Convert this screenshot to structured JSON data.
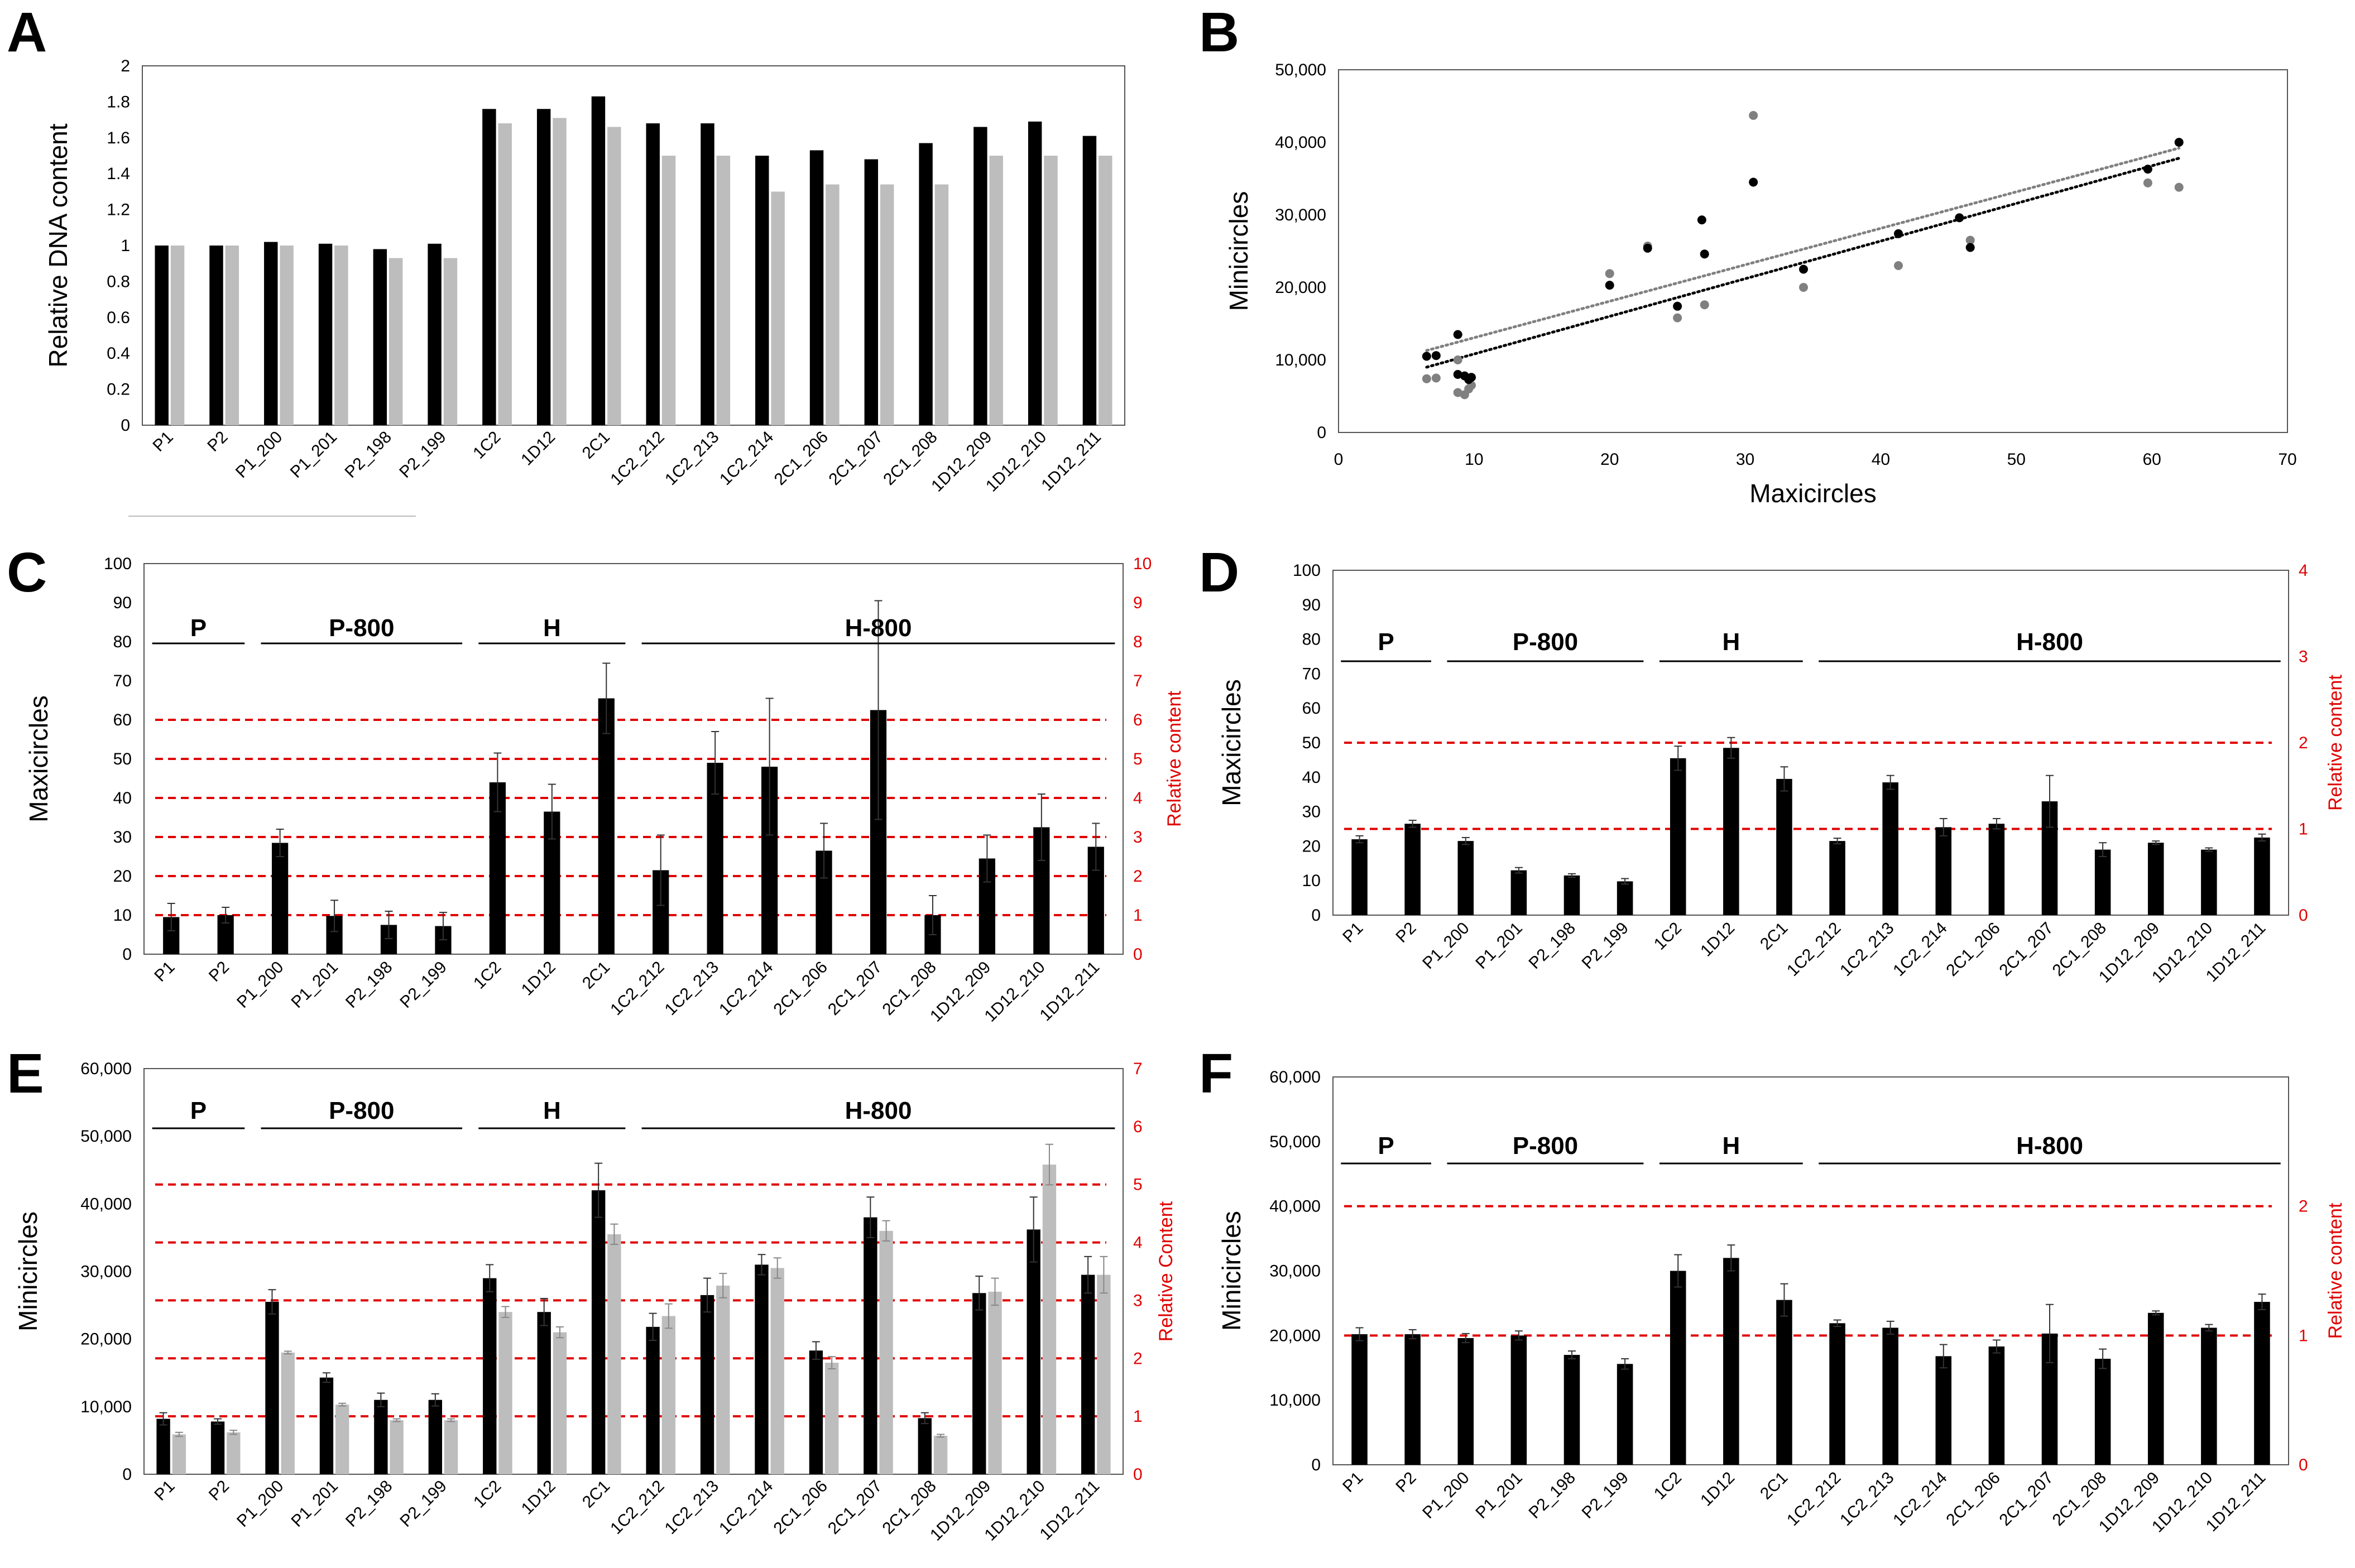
{
  "figure": {
    "panel_letters": [
      "A",
      "B",
      "C",
      "D",
      "E",
      "F"
    ]
  },
  "colors": {
    "black_bar": "#000000",
    "grey_bar": "#bdbdbd",
    "grey_point": "#808080",
    "reference_line": "#e00000",
    "axis": "#000000"
  },
  "chart_data": [
    {
      "panel": "A",
      "type": "bar",
      "ylabel": "Relative DNA content",
      "xlabel": "",
      "ylim": [
        0,
        2
      ],
      "yticks": [
        "0",
        "0.2",
        "0.4",
        "0.6",
        "0.8",
        "1",
        "1.2",
        "1.4",
        "1.6",
        "1.8",
        "2"
      ],
      "categories": [
        "P1",
        "P2",
        "P1_200",
        "P1_201",
        "P2_198",
        "P2_199",
        "1C2",
        "1D12",
        "2C1",
        "1C2_212",
        "1C2_213",
        "1C2_214",
        "2C1_206",
        "2C1_207",
        "2C1_208",
        "1D12_209",
        "1D12_210",
        "1D12_211"
      ],
      "series": [
        {
          "name": "Maxicircles",
          "values": [
            1.0,
            1.0,
            1.02,
            1.01,
            0.98,
            1.01,
            1.76,
            1.76,
            1.83,
            1.68,
            1.68,
            1.5,
            1.53,
            1.48,
            1.57,
            1.66,
            1.69,
            1.61
          ]
        },
        {
          "name": "Minicircles",
          "values": [
            1.0,
            1.0,
            1.0,
            1.0,
            0.93,
            0.93,
            1.68,
            1.71,
            1.66,
            1.5,
            1.5,
            1.3,
            1.34,
            1.34,
            1.34,
            1.5,
            1.5,
            1.5
          ]
        }
      ]
    },
    {
      "panel": "B",
      "type": "scatter",
      "xlabel": "Maxicircles",
      "ylabel": "Minicircles",
      "xlim": [
        0,
        70
      ],
      "ylim": [
        0,
        50000
      ],
      "xticks": [
        "0",
        "10",
        "20",
        "30",
        "40",
        "50",
        "60",
        "70"
      ],
      "yticks": [
        "0",
        "10,000",
        "20,000",
        "30,000",
        "40,000",
        "50,000"
      ],
      "series": [
        {
          "name": "black",
          "x": [
            6.5,
            7.2,
            8.8,
            8.8,
            9.3,
            9.6,
            9.8,
            20.0,
            22.8,
            25.0,
            26.8,
            27.0,
            30.6,
            34.3,
            41.3,
            45.8,
            46.6,
            59.7,
            62.0
          ],
          "y": [
            10500,
            10600,
            13500,
            8000,
            7800,
            7300,
            7600,
            20300,
            25400,
            17400,
            29300,
            24600,
            34500,
            22500,
            27400,
            29600,
            25500,
            36300,
            40000
          ]
        },
        {
          "name": "grey",
          "x": [
            6.5,
            7.2,
            8.8,
            8.8,
            9.3,
            9.6,
            9.8,
            20.0,
            22.8,
            25.0,
            27.0,
            30.6,
            34.3,
            41.3,
            46.6,
            59.7,
            62.0
          ],
          "y": [
            7400,
            7500,
            10000,
            5500,
            5200,
            6000,
            6500,
            21900,
            25700,
            15800,
            17600,
            43700,
            20000,
            23000,
            26500,
            34400,
            33800
          ]
        }
      ],
      "trendlines": [
        {
          "name": "black",
          "x": [
            6.5,
            62.0
          ],
          "y": [
            9000,
            37800
          ]
        },
        {
          "name": "grey",
          "x": [
            6.5,
            62.0
          ],
          "y": [
            11300,
            39200
          ]
        }
      ]
    },
    {
      "panel": "C",
      "type": "bar",
      "ylabel": "Maxicircles",
      "y2label": "Relative content",
      "ylim": [
        0,
        100
      ],
      "y2lim": [
        0,
        10
      ],
      "yticks": [
        "0",
        "10",
        "20",
        "30",
        "40",
        "50",
        "60",
        "70",
        "80",
        "90",
        "100"
      ],
      "y2ticks": [
        "0",
        "1",
        "2",
        "3",
        "4",
        "5",
        "6",
        "7",
        "8",
        "9",
        "10"
      ],
      "reference_lines": [
        1,
        2,
        3,
        4,
        5,
        6
      ],
      "groups": [
        {
          "label": "P",
          "from": 0,
          "to": 1
        },
        {
          "label": "P-800",
          "from": 2,
          "to": 5
        },
        {
          "label": "H",
          "from": 6,
          "to": 8
        },
        {
          "label": "H-800",
          "from": 9,
          "to": 17
        }
      ],
      "categories": [
        "P1",
        "P2",
        "P1_200",
        "P1_201",
        "P2_198",
        "P2_199",
        "1C2",
        "1D12",
        "2C1",
        "1C2_212",
        "1C2_213",
        "1C2_214",
        "2C1_206",
        "2C1_207",
        "2C1_208",
        "1D12_209",
        "1D12_210",
        "1D12_211"
      ],
      "series": [
        {
          "name": "Maxicircles",
          "values": [
            9.5,
            10,
            28.5,
            9.8,
            7.5,
            7.2,
            44,
            36.5,
            65.5,
            21.5,
            49,
            48,
            26.5,
            62.5,
            10,
            24.5,
            32.5,
            27.5
          ],
          "errors": [
            3.5,
            2,
            3.5,
            4,
            3.5,
            3.5,
            7.5,
            7,
            9,
            9,
            8,
            17.5,
            7,
            28,
            5,
            6,
            8.5,
            6
          ]
        }
      ]
    },
    {
      "panel": "D",
      "type": "bar",
      "ylabel": "Maxicircles",
      "y2label": "Relative content",
      "ylim": [
        0,
        100
      ],
      "y2lim": [
        0,
        4
      ],
      "yticks": [
        "0",
        "10",
        "20",
        "30",
        "40",
        "50",
        "60",
        "70",
        "80",
        "90",
        "100"
      ],
      "y2ticks": [
        "0",
        "1",
        "2",
        "3",
        "4"
      ],
      "reference_lines": [
        1,
        2
      ],
      "groups": [
        {
          "label": "P",
          "from": 0,
          "to": 1
        },
        {
          "label": "P-800",
          "from": 2,
          "to": 5
        },
        {
          "label": "H",
          "from": 6,
          "to": 8
        },
        {
          "label": "H-800",
          "from": 9,
          "to": 17
        }
      ],
      "categories": [
        "P1",
        "P2",
        "P1_200",
        "P1_201",
        "P2_198",
        "P2_199",
        "1C2",
        "1D12",
        "2C1",
        "1C2_212",
        "1C2_213",
        "1C2_214",
        "2C1_206",
        "2C1_207",
        "2C1_208",
        "1D12_209",
        "1D12_210",
        "1D12_211"
      ],
      "series": [
        {
          "name": "Maxicircles",
          "values": [
            22,
            26.5,
            21.5,
            13,
            11.5,
            9.8,
            45.5,
            48.5,
            39.5,
            21.5,
            38.5,
            25.5,
            26.5,
            33,
            19,
            21,
            19,
            22.5
          ],
          "errors": [
            1,
            1,
            1,
            0.8,
            0.5,
            0.8,
            3.5,
            3,
            3.5,
            0.8,
            2,
            2.5,
            1.5,
            7.5,
            2,
            0.5,
            0.5,
            1
          ]
        }
      ]
    },
    {
      "panel": "E",
      "type": "bar",
      "ylabel": "Minicircles",
      "y2label": "Relative Content",
      "ylim": [
        0,
        60000
      ],
      "y2lim": [
        0,
        7
      ],
      "yticks": [
        "0",
        "10,000",
        "20,000",
        "30,000",
        "40,000",
        "50,000",
        "60,000"
      ],
      "y2ticks": [
        "0",
        "1",
        "2",
        "3",
        "4",
        "5",
        "6",
        "7"
      ],
      "reference_lines": [
        1,
        2,
        3,
        4,
        5
      ],
      "groups": [
        {
          "label": "P",
          "from": 0,
          "to": 1
        },
        {
          "label": "P-800",
          "from": 2,
          "to": 5
        },
        {
          "label": "H",
          "from": 6,
          "to": 8
        },
        {
          "label": "H-800",
          "from": 9,
          "to": 17
        }
      ],
      "categories": [
        "P1",
        "P2",
        "P1_200",
        "P1_201",
        "P2_198",
        "P2_199",
        "1C2",
        "1D12",
        "2C1",
        "1C2_212",
        "1C2_213",
        "1C2_214",
        "2C1_206",
        "2C1_207",
        "2C1_208",
        "1D12_209",
        "1D12_210",
        "1D12_211"
      ],
      "series": [
        {
          "name": "black",
          "values": [
            8200,
            7800,
            25500,
            14300,
            11000,
            11000,
            29000,
            24000,
            42000,
            21800,
            26500,
            31000,
            18300,
            38000,
            8300,
            26800,
            36200,
            29500
          ],
          "errors": [
            900,
            400,
            1800,
            700,
            1000,
            900,
            2000,
            2000,
            4000,
            2000,
            2500,
            1500,
            1300,
            3000,
            800,
            2500,
            4800,
            2700
          ]
        },
        {
          "name": "grey",
          "values": [
            5900,
            6200,
            18000,
            10300,
            8000,
            8000,
            24000,
            21000,
            35500,
            23400,
            27900,
            30500,
            16500,
            36000,
            5700,
            27000,
            45800,
            29500
          ],
          "errors": [
            300,
            300,
            200,
            200,
            200,
            200,
            800,
            800,
            1500,
            1800,
            1800,
            1500,
            900,
            1500,
            200,
            2000,
            3000,
            2700
          ]
        }
      ]
    },
    {
      "panel": "F",
      "type": "bar",
      "ylabel": "Minicircles",
      "y2label": "Relative content",
      "ylim": [
        0,
        60000
      ],
      "y2lim": [
        0,
        3
      ],
      "yticks": [
        "0",
        "10,000",
        "20,000",
        "30,000",
        "40,000",
        "50,000",
        "60,000"
      ],
      "y2ticks": [
        "0",
        "1",
        "2"
      ],
      "reference_lines": [
        1,
        2
      ],
      "groups": [
        {
          "label": "P",
          "from": 0,
          "to": 1
        },
        {
          "label": "P-800",
          "from": 2,
          "to": 5
        },
        {
          "label": "H",
          "from": 6,
          "to": 8
        },
        {
          "label": "H-800",
          "from": 9,
          "to": 17
        }
      ],
      "categories": [
        "P1",
        "P2",
        "P1_200",
        "P1_201",
        "P2_198",
        "P2_199",
        "1C2",
        "1D12",
        "2C1",
        "1C2_212",
        "1C2_213",
        "1C2_214",
        "2C1_206",
        "2C1_207",
        "2C1_208",
        "1D12_209",
        "1D12_210",
        "1D12_211"
      ],
      "series": [
        {
          "name": "Minicircles",
          "values": [
            20200,
            20200,
            19600,
            20000,
            17000,
            15600,
            30000,
            32000,
            25500,
            21900,
            21200,
            16800,
            18300,
            20300,
            16400,
            23500,
            21200,
            25200
          ],
          "errors": [
            1000,
            700,
            700,
            700,
            600,
            800,
            2500,
            2000,
            2500,
            500,
            1000,
            1800,
            1000,
            4500,
            1500,
            300,
            500,
            1200
          ]
        }
      ]
    }
  ]
}
